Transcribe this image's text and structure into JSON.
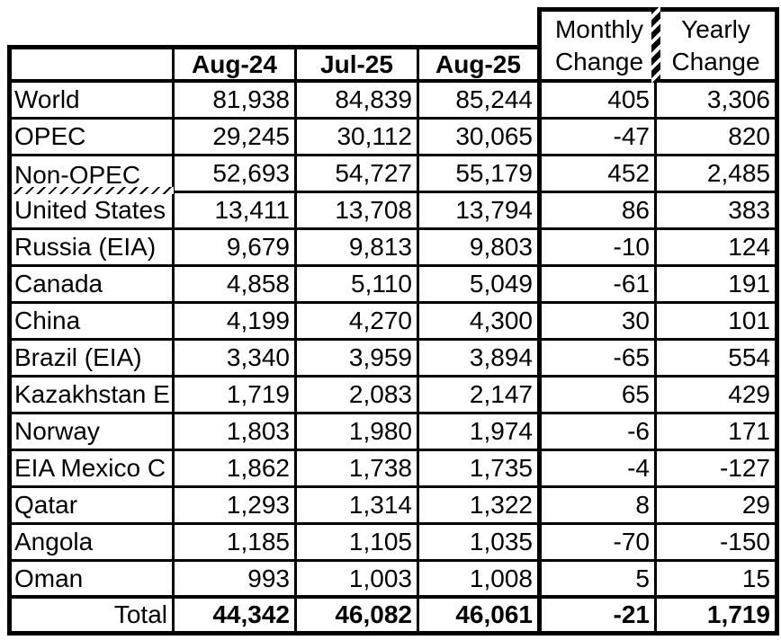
{
  "colors": {
    "background": "#ffffff",
    "text": "#000000",
    "border": "#000000"
  },
  "table": {
    "corner_label": "",
    "month_headers": [
      "Aug-24",
      "Jul-25",
      "Aug-25"
    ],
    "change_headers": [
      "Monthly\nChange",
      "Yearly\nChange"
    ],
    "rows": [
      {
        "label": "World",
        "aug24": "81,938",
        "jul25": "84,839",
        "aug25": "85,244",
        "mchg": "405",
        "ychg": "3,306"
      },
      {
        "label": "OPEC",
        "aug24": "29,245",
        "jul25": "30,112",
        "aug25": "30,065",
        "mchg": "-47",
        "ychg": "820"
      },
      {
        "label": "Non-OPEC",
        "aug24": "52,693",
        "jul25": "54,727",
        "aug25": "55,179",
        "mchg": "452",
        "ychg": "2,485"
      },
      {
        "label": "United States",
        "aug24": "13,411",
        "jul25": "13,708",
        "aug25": "13,794",
        "mchg": "86",
        "ychg": "383"
      },
      {
        "label": "Russia (EIA)",
        "aug24": "9,679",
        "jul25": "9,813",
        "aug25": "9,803",
        "mchg": "-10",
        "ychg": "124"
      },
      {
        "label": "Canada",
        "aug24": "4,858",
        "jul25": "5,110",
        "aug25": "5,049",
        "mchg": "-61",
        "ychg": "191"
      },
      {
        "label": "China",
        "aug24": "4,199",
        "jul25": "4,270",
        "aug25": "4,300",
        "mchg": "30",
        "ychg": "101"
      },
      {
        "label": "Brazil (EIA)",
        "aug24": "3,340",
        "jul25": "3,959",
        "aug25": "3,894",
        "mchg": "-65",
        "ychg": "554"
      },
      {
        "label": "Kazakhstan E",
        "aug24": "1,719",
        "jul25": "2,083",
        "aug25": "2,147",
        "mchg": "65",
        "ychg": "429"
      },
      {
        "label": "Norway",
        "aug24": "1,803",
        "jul25": "1,980",
        "aug25": "1,974",
        "mchg": "-6",
        "ychg": "171"
      },
      {
        "label": "EIA Mexico C",
        "aug24": "1,862",
        "jul25": "1,738",
        "aug25": "1,735",
        "mchg": "-4",
        "ychg": "-127"
      },
      {
        "label": "Qatar",
        "aug24": "1,293",
        "jul25": "1,314",
        "aug25": "1,322",
        "mchg": "8",
        "ychg": "29"
      },
      {
        "label": "Angola",
        "aug24": "1,185",
        "jul25": "1,105",
        "aug25": "1,035",
        "mchg": "-70",
        "ychg": "-150"
      },
      {
        "label": "Oman",
        "aug24": "993",
        "jul25": "1,003",
        "aug25": "1,008",
        "mchg": "5",
        "ychg": "15"
      }
    ],
    "total": {
      "label": "Total",
      "aug24": "44,342",
      "jul25": "46,082",
      "aug25": "46,061",
      "mchg": "-21",
      "ychg": "1,719"
    }
  },
  "chart_data": {
    "type": "table",
    "columns": [
      "",
      "Aug-24",
      "Jul-25",
      "Aug-25",
      "Monthly Change",
      "Yearly Change"
    ],
    "rows": [
      [
        "World",
        81938,
        84839,
        85244,
        405,
        3306
      ],
      [
        "OPEC",
        29245,
        30112,
        30065,
        -47,
        820
      ],
      [
        "Non-OPEC",
        52693,
        54727,
        55179,
        452,
        2485
      ],
      [
        "United States",
        13411,
        13708,
        13794,
        86,
        383
      ],
      [
        "Russia (EIA)",
        9679,
        9813,
        9803,
        -10,
        124
      ],
      [
        "Canada",
        4858,
        5110,
        5049,
        -61,
        191
      ],
      [
        "China",
        4199,
        4270,
        4300,
        30,
        101
      ],
      [
        "Brazil (EIA)",
        3340,
        3959,
        3894,
        -65,
        554
      ],
      [
        "Kazakhstan E",
        1719,
        2083,
        2147,
        65,
        429
      ],
      [
        "Norway",
        1803,
        1980,
        1974,
        -6,
        171
      ],
      [
        "EIA Mexico C",
        1862,
        1738,
        1735,
        -4,
        -127
      ],
      [
        "Qatar",
        1293,
        1314,
        1322,
        8,
        29
      ],
      [
        "Angola",
        1185,
        1105,
        1035,
        -70,
        -150
      ],
      [
        "Oman",
        993,
        1003,
        1008,
        5,
        15
      ],
      [
        "Total",
        44342,
        46082,
        46061,
        -21,
        1719
      ]
    ],
    "layout_hints": {
      "bold_rows": [
        "header",
        "Total"
      ],
      "hatched_borders": [
        "below Non-OPEC label cell",
        "between Monthly and Yearly header cells"
      ]
    }
  }
}
